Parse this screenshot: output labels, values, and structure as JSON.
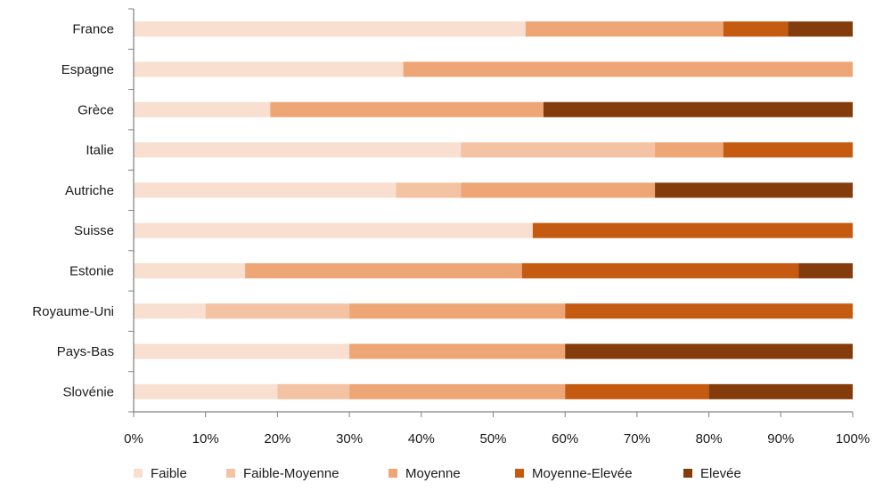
{
  "chart_data": {
    "type": "bar",
    "orientation": "horizontal",
    "stacked": "percent",
    "categories": [
      "France",
      "Espagne",
      "Grèce",
      "Italie",
      "Autriche",
      "Suisse",
      "Estonie",
      "Royaume-Uni",
      "Pays-Bas",
      "Slovénie"
    ],
    "series": [
      {
        "name": "Faible",
        "color": "#f8dfd0",
        "values": [
          54.5,
          37.5,
          19,
          45.5,
          36.5,
          55.5,
          15.5,
          10,
          30,
          20
        ]
      },
      {
        "name": "Faible-Moyenne",
        "color": "#f4c3a4",
        "values": [
          0,
          0,
          0,
          27,
          9,
          0,
          0,
          20,
          0,
          10
        ]
      },
      {
        "name": "Moyenne",
        "color": "#eea676",
        "values": [
          27.5,
          62.5,
          38,
          9.5,
          27,
          0,
          38.5,
          30,
          30,
          30
        ]
      },
      {
        "name": "Moyenne-Elevée",
        "color": "#c55a11",
        "values": [
          9,
          0,
          0,
          18,
          0,
          44.5,
          38.5,
          40,
          0,
          20
        ]
      },
      {
        "name": "Elevée",
        "color": "#843c0c",
        "values": [
          9,
          0,
          43,
          0,
          27.5,
          0,
          7.5,
          0,
          40,
          20
        ]
      }
    ],
    "xticks": [
      "0%",
      "10%",
      "20%",
      "30%",
      "40%",
      "50%",
      "60%",
      "70%",
      "80%",
      "90%",
      "100%"
    ],
    "xlim": [
      0,
      100
    ],
    "grid": false,
    "legend_position": "bottom"
  }
}
